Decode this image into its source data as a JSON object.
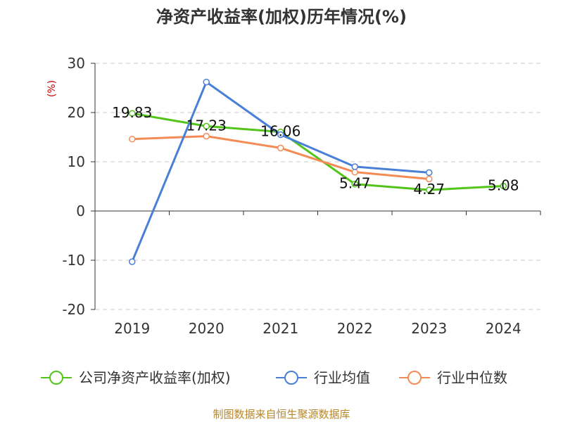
{
  "chart_data": {
    "type": "line",
    "title": "净资产收益率(加权)历年情况(%)",
    "ylabel": "(%)",
    "xlabel": "",
    "categories": [
      "2019",
      "2020",
      "2021",
      "2022",
      "2023",
      "2024"
    ],
    "ylim": [
      -20,
      30
    ],
    "yticks": [
      30,
      20,
      10,
      0,
      -10,
      -20
    ],
    "grid": true,
    "legend_position": "bottom",
    "series": [
      {
        "name": "公司净资产收益率(加权)",
        "color": "#52c41a",
        "values": [
          19.83,
          17.23,
          16.06,
          5.47,
          4.27,
          5.08
        ],
        "labels": [
          "19.83",
          "17.23",
          "16.06",
          "5.47",
          "4.27",
          "5.08"
        ]
      },
      {
        "name": "行业均值",
        "color": "#4a7fd8",
        "values": [
          -10.3,
          26.2,
          15.5,
          9.0,
          7.8,
          null
        ]
      },
      {
        "name": "行业中位数",
        "color": "#f58b54",
        "values": [
          14.6,
          15.2,
          12.8,
          7.9,
          6.5,
          null
        ]
      }
    ],
    "source": "制图数据来自恒生聚源数据库"
  }
}
